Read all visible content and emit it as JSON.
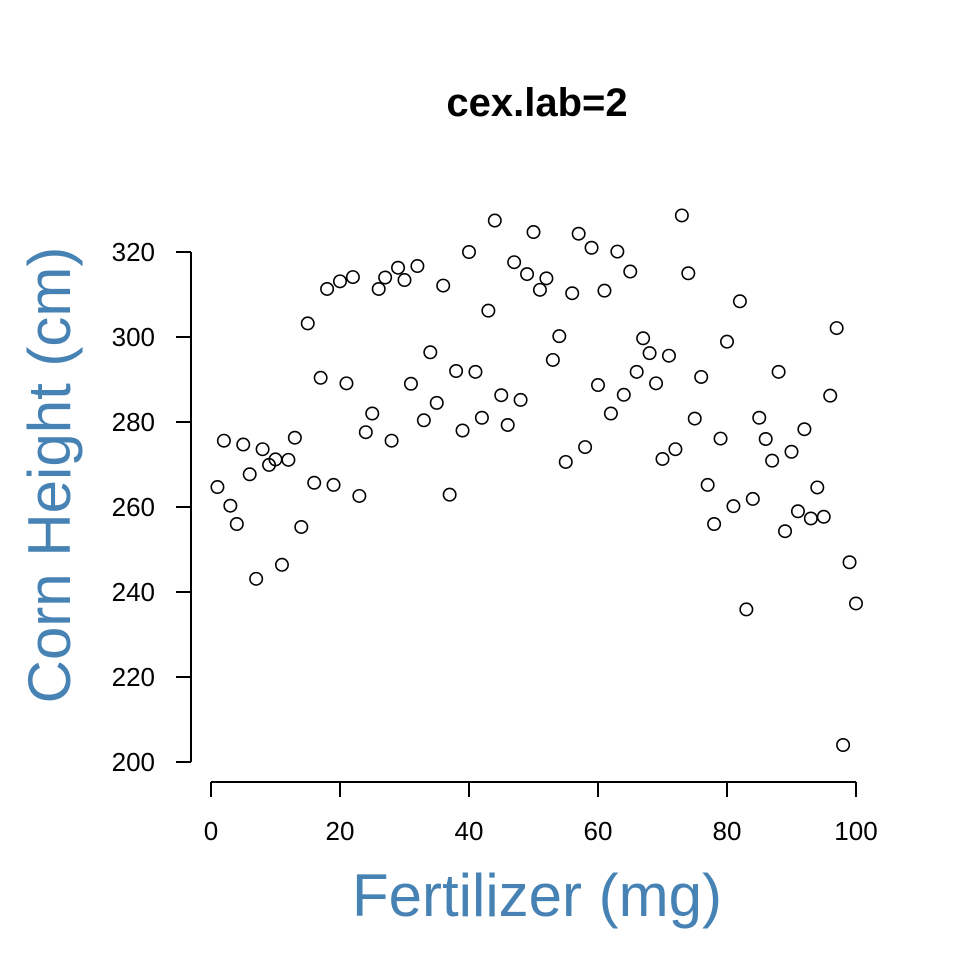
{
  "chart_data": {
    "type": "scatter",
    "title": "cex.lab=2",
    "xlabel": "Fertilizer (mg)",
    "ylabel": "Corn Height (cm)",
    "xlim": [
      0,
      100
    ],
    "ylim": [
      200,
      330
    ],
    "xticks": [
      0,
      20,
      40,
      60,
      80,
      100
    ],
    "yticks": [
      200,
      220,
      240,
      260,
      280,
      300,
      320
    ],
    "grid": false,
    "colors": {
      "axis_label": "#4682B4",
      "point": "#000000"
    },
    "x": [
      1,
      2,
      3,
      4,
      5,
      6,
      7,
      8,
      9,
      10,
      11,
      12,
      13,
      14,
      15,
      16,
      17,
      18,
      19,
      20,
      21,
      22,
      23,
      24,
      25,
      26,
      27,
      28,
      29,
      30,
      31,
      32,
      33,
      34,
      35,
      36,
      37,
      38,
      39,
      40,
      41,
      42,
      43,
      44,
      45,
      46,
      47,
      48,
      49,
      50,
      51,
      52,
      53,
      54,
      55,
      56,
      57,
      58,
      59,
      60,
      61,
      62,
      63,
      64,
      65,
      66,
      67,
      68,
      69,
      70,
      71,
      72,
      73,
      74,
      75,
      76,
      77,
      78,
      79,
      80,
      81,
      82,
      83,
      84,
      85,
      86,
      87,
      88,
      89,
      90,
      91,
      92,
      93,
      94,
      95,
      96,
      97,
      98,
      99,
      100
    ],
    "y": [
      264.7,
      275.6,
      260.3,
      256,
      274.7,
      267.7,
      243.1,
      273.6,
      269.9,
      271.2,
      246.4,
      271.1,
      276.3,
      255.3,
      303.2,
      265.7,
      290.4,
      311.3,
      265.2,
      313.1,
      289.1,
      314.1,
      262.6,
      277.6,
      282,
      311.3,
      314,
      275.6,
      316.3,
      313.4,
      289,
      316.7,
      280.4,
      296.4,
      284.5,
      312.1,
      262.9,
      292,
      278,
      320,
      291.8,
      281,
      306.2,
      327.4,
      286.3,
      279.3,
      317.6,
      285.2,
      314.8,
      324.7,
      311.1,
      313.8,
      294.6,
      300.2,
      270.6,
      310.3,
      324.3,
      274.1,
      321,
      288.7,
      310.9,
      282,
      320.1,
      286.4,
      315.4,
      291.8,
      299.7,
      296.2,
      289.1,
      271.3,
      295.6,
      273.6,
      328.6,
      315,
      280.8,
      290.6,
      265.2,
      256,
      276.1,
      298.9,
      260.2,
      308.4,
      235.9,
      261.9,
      281,
      276,
      270.9,
      291.8,
      254.3,
      273,
      259,
      278.3,
      257.3,
      264.6,
      257.7,
      286.2,
      302.1,
      204,
      247,
      237.3
    ]
  }
}
